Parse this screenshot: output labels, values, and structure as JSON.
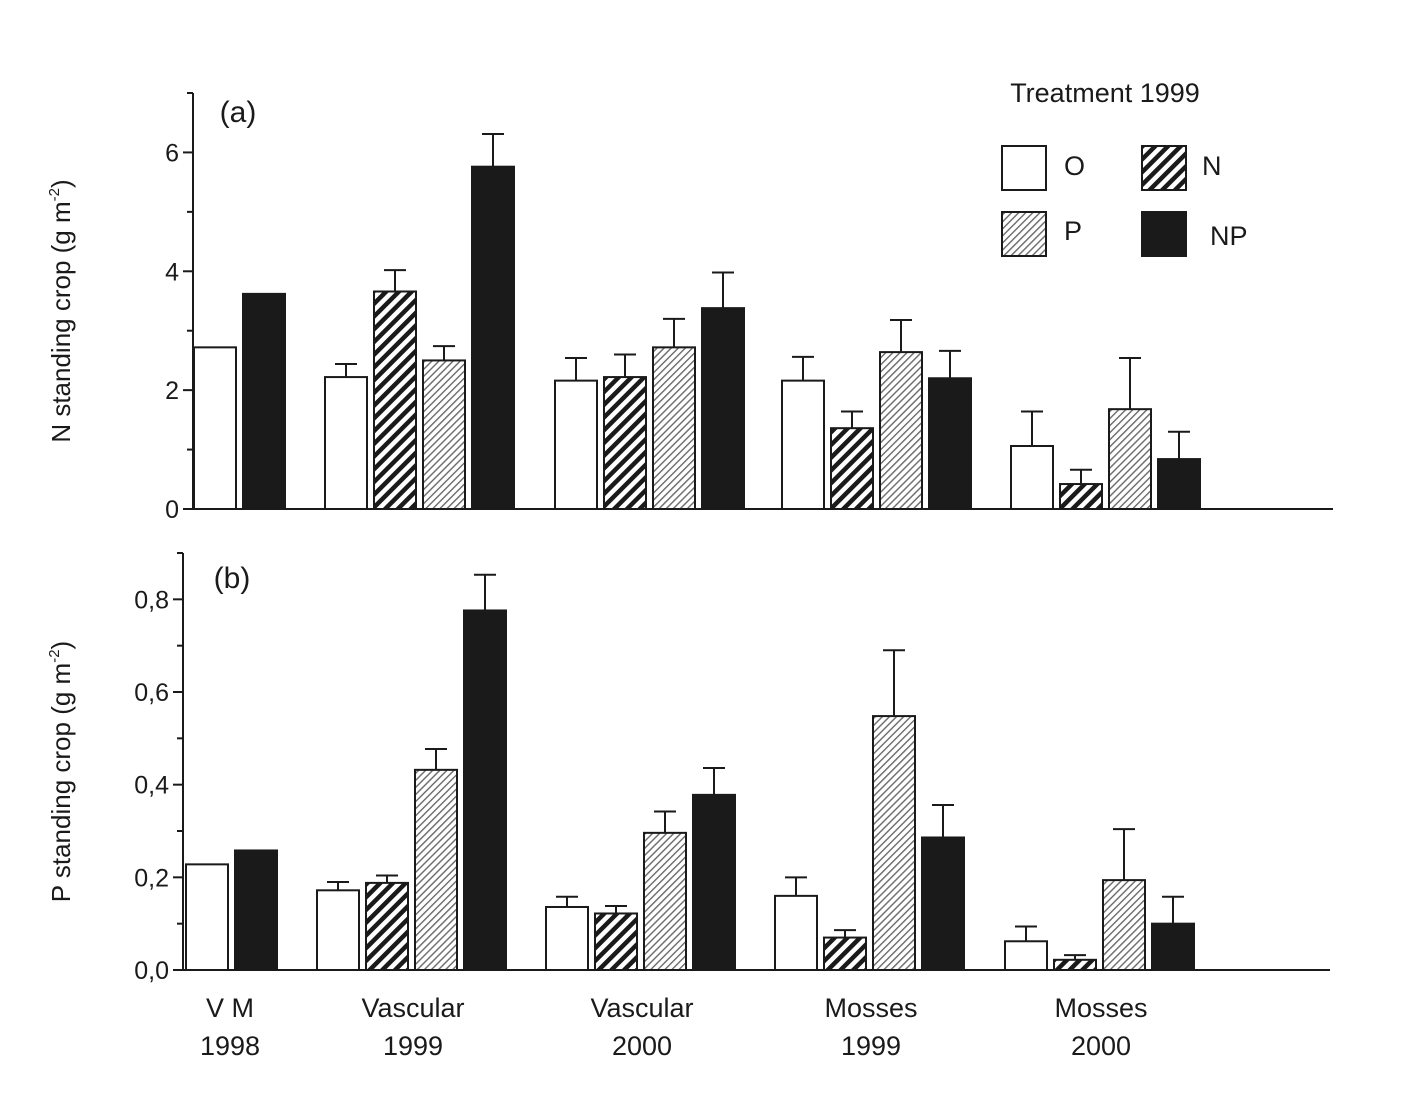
{
  "colors": {
    "ink": "#1a1a1a",
    "open": "#ffffff",
    "hatch_n": "#1a1a1a",
    "hatch_p": "#8a8a8a",
    "solid": "#1a1a1a"
  },
  "legend": {
    "title": "Treatment 1999",
    "items": [
      {
        "key": "O",
        "label": "O",
        "fill": "open"
      },
      {
        "key": "N",
        "label": "N",
        "fill": "hatch_n"
      },
      {
        "key": "P",
        "label": "P",
        "fill": "hatch_p"
      },
      {
        "key": "NP",
        "label": "NP",
        "fill": "solid"
      }
    ]
  },
  "x_groups": [
    {
      "label_top": "V   M",
      "label_bottom": "1998"
    },
    {
      "label_top": "Vascular",
      "label_bottom": "1999"
    },
    {
      "label_top": "Vascular",
      "label_bottom": "2000"
    },
    {
      "label_top": "Mosses",
      "label_bottom": "1999"
    },
    {
      "label_top": "Mosses",
      "label_bottom": "2000"
    }
  ],
  "chart_data": [
    {
      "type": "bar",
      "panel_label": "(a)",
      "ylabel": "N standing crop (g m",
      "ylabel_sup": "-2",
      "ylabel_end": ")",
      "ylim": [
        0,
        7
      ],
      "yticks": [
        {
          "v": 0,
          "t": "0"
        },
        {
          "v": 2,
          "t": "2"
        },
        {
          "v": 4,
          "t": "4"
        },
        {
          "v": 6,
          "t": "6"
        }
      ],
      "minor_ticks": [
        1,
        3,
        5,
        7
      ],
      "groups": [
        {
          "bars": [
            {
              "treat": "O",
              "value": 2.72,
              "err": null
            },
            {
              "treat": "NP",
              "value": 3.62,
              "err": null
            }
          ]
        },
        {
          "bars": [
            {
              "treat": "O",
              "value": 2.22,
              "err": 0.22
            },
            {
              "treat": "N",
              "value": 3.66,
              "err": 0.36
            },
            {
              "treat": "P",
              "value": 2.5,
              "err": 0.24
            },
            {
              "treat": "NP",
              "value": 5.76,
              "err": 0.55
            }
          ]
        },
        {
          "bars": [
            {
              "treat": "O",
              "value": 2.16,
              "err": 0.38
            },
            {
              "treat": "N",
              "value": 2.22,
              "err": 0.38
            },
            {
              "treat": "P",
              "value": 2.72,
              "err": 0.48
            },
            {
              "treat": "NP",
              "value": 3.38,
              "err": 0.6
            }
          ]
        },
        {
          "bars": [
            {
              "treat": "O",
              "value": 2.16,
              "err": 0.4
            },
            {
              "treat": "N",
              "value": 1.36,
              "err": 0.28
            },
            {
              "treat": "P",
              "value": 2.64,
              "err": 0.54
            },
            {
              "treat": "NP",
              "value": 2.2,
              "err": 0.46
            }
          ]
        },
        {
          "bars": [
            {
              "treat": "O",
              "value": 1.06,
              "err": 0.58
            },
            {
              "treat": "N",
              "value": 0.42,
              "err": 0.24
            },
            {
              "treat": "P",
              "value": 1.68,
              "err": 0.86
            },
            {
              "treat": "NP",
              "value": 0.84,
              "err": 0.46
            }
          ]
        }
      ]
    },
    {
      "type": "bar",
      "panel_label": "(b)",
      "ylabel": "P standing crop (g m",
      "ylabel_sup": "-2",
      "ylabel_end": ")",
      "ylim": [
        0,
        0.9
      ],
      "yticks": [
        {
          "v": 0,
          "t": "0,0"
        },
        {
          "v": 0.2,
          "t": "0,2"
        },
        {
          "v": 0.4,
          "t": "0,4"
        },
        {
          "v": 0.6,
          "t": "0,6"
        },
        {
          "v": 0.8,
          "t": "0,8"
        }
      ],
      "minor_ticks": [
        0.1,
        0.3,
        0.5,
        0.7,
        0.9
      ],
      "groups": [
        {
          "bars": [
            {
              "treat": "O",
              "value": 0.228,
              "err": null
            },
            {
              "treat": "NP",
              "value": 0.258,
              "err": null
            }
          ]
        },
        {
          "bars": [
            {
              "treat": "O",
              "value": 0.172,
              "err": 0.018
            },
            {
              "treat": "N",
              "value": 0.188,
              "err": 0.016
            },
            {
              "treat": "P",
              "value": 0.432,
              "err": 0.045
            },
            {
              "treat": "NP",
              "value": 0.776,
              "err": 0.077
            }
          ]
        },
        {
          "bars": [
            {
              "treat": "O",
              "value": 0.136,
              "err": 0.022
            },
            {
              "treat": "N",
              "value": 0.122,
              "err": 0.016
            },
            {
              "treat": "P",
              "value": 0.296,
              "err": 0.046
            },
            {
              "treat": "NP",
              "value": 0.378,
              "err": 0.058
            }
          ]
        },
        {
          "bars": [
            {
              "treat": "O",
              "value": 0.16,
              "err": 0.04
            },
            {
              "treat": "N",
              "value": 0.07,
              "err": 0.016
            },
            {
              "treat": "P",
              "value": 0.548,
              "err": 0.142
            },
            {
              "treat": "NP",
              "value": 0.286,
              "err": 0.07
            }
          ]
        },
        {
          "bars": [
            {
              "treat": "O",
              "value": 0.062,
              "err": 0.032
            },
            {
              "treat": "N",
              "value": 0.022,
              "err": 0.01
            },
            {
              "treat": "P",
              "value": 0.194,
              "err": 0.11
            },
            {
              "treat": "NP",
              "value": 0.1,
              "err": 0.058
            }
          ]
        }
      ]
    }
  ]
}
